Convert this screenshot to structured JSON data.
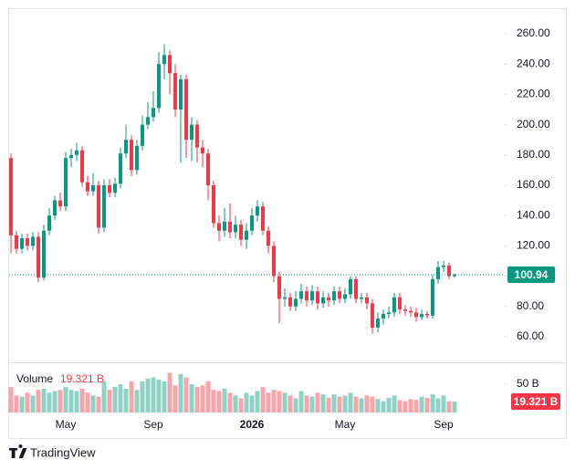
{
  "chart_data": {
    "type": "candlestick",
    "categories": [
      null,
      null,
      null,
      null,
      null,
      null,
      null,
      null,
      null,
      null,
      "May",
      null,
      null,
      null,
      null,
      null,
      null,
      null,
      null,
      null,
      null,
      null,
      null,
      null,
      null,
      null,
      "Sep",
      null,
      null,
      null,
      null,
      null,
      null,
      null,
      null,
      null,
      null,
      null,
      null,
      null,
      null,
      null,
      null,
      null,
      "2026",
      null,
      null,
      null,
      null,
      null,
      null,
      null,
      null,
      null,
      null,
      null,
      null,
      null,
      null,
      null,
      null,
      "May",
      null,
      null,
      null,
      null,
      null,
      null,
      null,
      null,
      null,
      null,
      null,
      null,
      null,
      null,
      null,
      null,
      null,
      "Sep",
      null,
      null
    ],
    "open": [
      178,
      127,
      118,
      125,
      120,
      126,
      99,
      130,
      140,
      150,
      146,
      178,
      180,
      183,
      162,
      156,
      160,
      132,
      160,
      155,
      161,
      181,
      190,
      170,
      186,
      200,
      205,
      211,
      240,
      246,
      234,
      210,
      230,
      190,
      200,
      185,
      181,
      160,
      135,
      130,
      136,
      129,
      134,
      124,
      130,
      140,
      146,
      130,
      120,
      100,
      85,
      86,
      80,
      85,
      90,
      84,
      90,
      82,
      86,
      84,
      90,
      85,
      88,
      98,
      85,
      86,
      82,
      66,
      72,
      75,
      76,
      86,
      78,
      77,
      76,
      73,
      75,
      74,
      98,
      106,
      107,
      100
    ],
    "high": [
      181,
      130,
      128,
      128,
      129,
      129,
      134,
      145,
      153,
      155,
      182,
      184,
      188,
      186,
      166,
      168,
      163,
      164,
      164,
      165,
      185,
      200,
      193,
      190,
      206,
      215,
      222,
      248,
      253,
      249,
      240,
      233,
      233,
      205,
      203,
      190,
      184,
      163,
      140,
      145,
      148,
      140,
      137,
      135,
      145,
      150,
      149,
      133,
      123,
      103,
      92,
      89,
      90,
      95,
      93,
      94,
      93,
      90,
      89,
      93,
      93,
      92,
      100,
      100,
      89,
      89,
      85,
      76,
      78,
      80,
      89,
      89,
      81,
      80,
      79,
      78,
      77,
      101,
      110,
      110,
      109,
      102
    ],
    "low": [
      115,
      115,
      115,
      117,
      117,
      96,
      97,
      127,
      137,
      143,
      143,
      172,
      176,
      159,
      153,
      153,
      128,
      129,
      152,
      152,
      158,
      178,
      166,
      167,
      183,
      197,
      202,
      208,
      230,
      220,
      205,
      175,
      178,
      176,
      175,
      172,
      150,
      132,
      123,
      126,
      125,
      125,
      120,
      118,
      127,
      136,
      127,
      115,
      96,
      69,
      80,
      77,
      77,
      82,
      80,
      81,
      78,
      79,
      80,
      81,
      82,
      82,
      85,
      82,
      82,
      78,
      62,
      63,
      68,
      72,
      73,
      75,
      74,
      73,
      70,
      71,
      72,
      72,
      95,
      103,
      98,
      99
    ],
    "close": [
      127,
      118,
      125,
      120,
      126,
      99,
      130,
      140,
      150,
      146,
      178,
      180,
      183,
      162,
      156,
      160,
      132,
      160,
      155,
      161,
      181,
      190,
      170,
      186,
      200,
      205,
      211,
      240,
      246,
      234,
      210,
      230,
      190,
      200,
      185,
      181,
      160,
      135,
      130,
      136,
      129,
      134,
      124,
      130,
      140,
      146,
      130,
      120,
      100,
      85,
      86,
      80,
      85,
      90,
      84,
      90,
      82,
      86,
      84,
      90,
      85,
      88,
      98,
      85,
      86,
      82,
      66,
      72,
      75,
      76,
      86,
      78,
      77,
      76,
      73,
      75,
      74,
      98,
      106,
      107,
      100,
      100.94
    ],
    "ylim": [
      44.3,
      276.3
    ],
    "yticks": [
      {
        "value": 60,
        "label": "60.00"
      },
      {
        "value": 80,
        "label": "80.00"
      },
      {
        "value": 100,
        "label": "100.00"
      },
      {
        "value": 120,
        "label": "120.00"
      },
      {
        "value": 140,
        "label": "140.00"
      },
      {
        "value": 160,
        "label": "160.00"
      },
      {
        "value": 180,
        "label": "180.00"
      },
      {
        "value": 200,
        "label": "200.00"
      },
      {
        "value": 220,
        "label": "220.00"
      },
      {
        "value": 240,
        "label": "240.00"
      },
      {
        "value": 260,
        "label": "260.00"
      }
    ],
    "up_color": "#089981",
    "down_color": "#f23645",
    "last_price_line": true,
    "volume": {
      "name": "Volume",
      "values": [
        45,
        30,
        28,
        35,
        30,
        40,
        42,
        35,
        38,
        40,
        45,
        40,
        38,
        42,
        35,
        30,
        28,
        55,
        40,
        45,
        50,
        42,
        55,
        40,
        55,
        60,
        62,
        58,
        55,
        70,
        48,
        68,
        62,
        50,
        45,
        48,
        55,
        40,
        38,
        42,
        35,
        30,
        25,
        35,
        30,
        38,
        45,
        35,
        40,
        38,
        35,
        30,
        25,
        38,
        30,
        28,
        35,
        32,
        26,
        32,
        28,
        30,
        35,
        28,
        25,
        30,
        28,
        24,
        20,
        26,
        30,
        22,
        20,
        24,
        22,
        28,
        26,
        32,
        25,
        30,
        20,
        19.321
      ],
      "value_labels": [
        null,
        null,
        null,
        null,
        null,
        null,
        null,
        null,
        null,
        null,
        null,
        null,
        null,
        null,
        null,
        null,
        null,
        null,
        null,
        null,
        null,
        null,
        null,
        null,
        null,
        null,
        null,
        null,
        null,
        null,
        null,
        null,
        null,
        null,
        null,
        null,
        null,
        null,
        null,
        null,
        null,
        null,
        null,
        null,
        null,
        null,
        null,
        null,
        null,
        null,
        null,
        null,
        null,
        null,
        null,
        null,
        null,
        null,
        null,
        null,
        null,
        null,
        null,
        null,
        null,
        null,
        null,
        null,
        null,
        null,
        null,
        null,
        null,
        null,
        null,
        null,
        null,
        null,
        null,
        null,
        null,
        "19.321 B"
      ],
      "ylim": [
        0,
        75.8
      ],
      "yticks": [
        {
          "value": 50,
          "label": "50 B"
        }
      ]
    }
  },
  "brand": "TradingView"
}
